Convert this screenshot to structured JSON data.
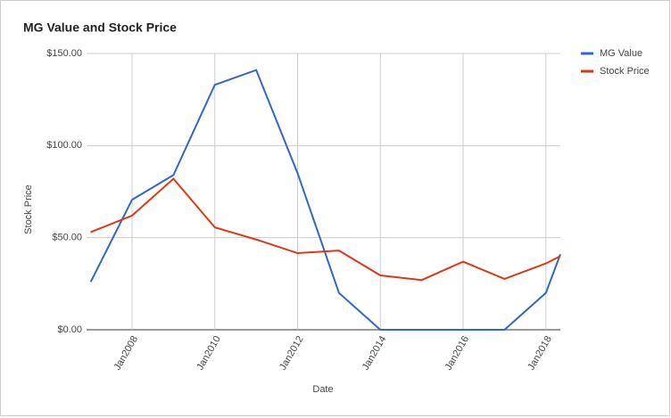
{
  "chart_data": {
    "type": "line",
    "title": "MG Value and Stock Price",
    "x_label": "Date",
    "y_label": "Stock Price",
    "x": [
      2007,
      2008,
      2009,
      2010,
      2011,
      2012,
      2013,
      2014,
      2015,
      2016,
      2017,
      2018,
      2018.35
    ],
    "series": [
      {
        "name": "MG Value",
        "color": "#3366cc",
        "values": [
          26,
          70.6,
          84,
          133,
          141,
          85,
          20,
          0,
          0,
          0,
          0,
          20,
          41
        ]
      },
      {
        "name": "Stock Price",
        "color": "#dc3912",
        "values": [
          53,
          62,
          82,
          55.6,
          49,
          41.6,
          43,
          29.5,
          27,
          37,
          27.6,
          36,
          40
        ]
      }
    ],
    "xlim": [
      2006.9,
      2018.35
    ],
    "xticks": [
      {
        "value": 2008,
        "label": "Jan2008"
      },
      {
        "value": 2010,
        "label": "Jan2010"
      },
      {
        "value": 2012,
        "label": "Jan2012"
      },
      {
        "value": 2014,
        "label": "Jan2014"
      },
      {
        "value": 2016,
        "label": "Jan2016"
      },
      {
        "value": 2018,
        "label": "Jan2018"
      }
    ],
    "ylim": [
      0,
      150
    ],
    "yticks": [
      {
        "value": 0,
        "label": "$0.00"
      },
      {
        "value": 50,
        "label": "$50.00"
      },
      {
        "value": 100,
        "label": "$100.00"
      },
      {
        "value": 150,
        "label": "$150.00"
      }
    ],
    "grid": true,
    "legend": "right"
  }
}
